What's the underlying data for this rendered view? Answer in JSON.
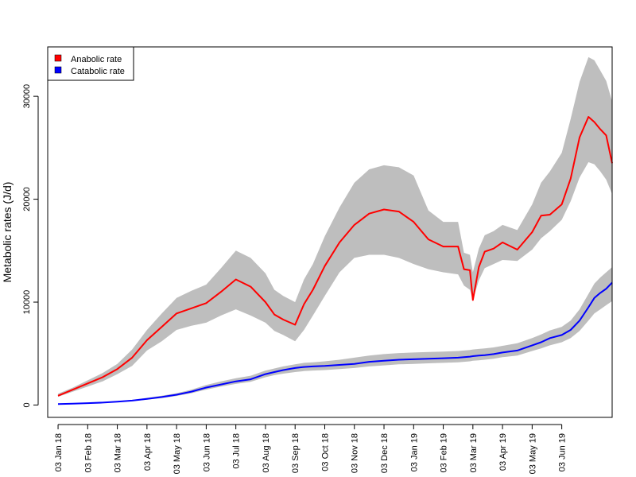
{
  "chart_data": {
    "type": "line",
    "title": "",
    "xlabel": "",
    "ylabel": "Metabolic rates (J/d)",
    "x_tick_labels": [
      "03 Jan 18",
      "03 Feb 18",
      "03 Mar 18",
      "03 Apr 18",
      "03 May 18",
      "03 Jun 18",
      "03 Jul 18",
      "03 Aug 18",
      "03 Sep 18",
      "03 Oct 18",
      "03 Nov 18",
      "03 Dec 18",
      "03 Jan 19",
      "03 Feb 19",
      "03 Mar 19",
      "03 Apr 19",
      "03 May 19",
      "03 Jun 19"
    ],
    "y_ticks": [
      0,
      10000,
      20000,
      30000
    ],
    "y_tick_labels": [
      "0",
      "10000",
      "20000",
      "30000"
    ],
    "ylim": [
      -1200,
      34800
    ],
    "xlim_months": [
      -0.35,
      18.7
    ],
    "legend_position": "top-left",
    "x": [
      0,
      0.5,
      1,
      1.5,
      2,
      2.5,
      3,
      3.5,
      4,
      4.5,
      5,
      5.5,
      6,
      6.5,
      7,
      7.3,
      7.6,
      8,
      8.3,
      8.6,
      9,
      9.5,
      10,
      10.5,
      11,
      11.5,
      12,
      12.5,
      13,
      13.5,
      13.7,
      13.9,
      14,
      14.2,
      14.4,
      14.7,
      15,
      15.5,
      16,
      16.3,
      16.6,
      17,
      17.3,
      17.6,
      17.9,
      18.1,
      18.3,
      18.5,
      18.7
    ],
    "series": [
      {
        "name": "Anabolic rate",
        "color": "#ff0000",
        "values": [
          900,
          1500,
          2100,
          2700,
          3500,
          4600,
          6300,
          7600,
          8900,
          9400,
          9900,
          11000,
          12200,
          11500,
          10000,
          8800,
          8300,
          7800,
          9800,
          11200,
          13500,
          15800,
          17500,
          18600,
          19000,
          18800,
          17800,
          16100,
          15400,
          15400,
          13200,
          13100,
          10200,
          13400,
          14900,
          15200,
          15800,
          15100,
          16800,
          18400,
          18500,
          19500,
          22000,
          26000,
          28000,
          27500,
          26800,
          26200,
          23500
        ],
        "band_low": [
          800,
          1300,
          1800,
          2300,
          3000,
          3800,
          5300,
          6200,
          7300,
          7700,
          8000,
          8700,
          9300,
          8700,
          8000,
          7200,
          6800,
          6200,
          7300,
          8700,
          10600,
          12900,
          14300,
          14600,
          14600,
          14300,
          13700,
          13200,
          12900,
          12700,
          11600,
          11200,
          10200,
          12100,
          13300,
          13700,
          14100,
          14000,
          15100,
          16200,
          16900,
          18000,
          19800,
          22100,
          23600,
          23400,
          22700,
          21900,
          20500
        ],
        "band_high": [
          1100,
          1700,
          2400,
          3100,
          4000,
          5400,
          7300,
          8900,
          10400,
          11100,
          11700,
          13300,
          15000,
          14300,
          12800,
          11200,
          10600,
          10000,
          12200,
          13700,
          16400,
          19200,
          21600,
          22900,
          23300,
          23100,
          22300,
          18900,
          17800,
          17800,
          14800,
          14600,
          12900,
          15200,
          16500,
          16900,
          17500,
          17000,
          19500,
          21600,
          22700,
          24500,
          27800,
          31400,
          33800,
          33500,
          32500,
          31500,
          29500
        ]
      },
      {
        "name": "Catabolic rate",
        "color": "#0000ff",
        "values": [
          100,
          130,
          180,
          240,
          320,
          430,
          600,
          780,
          1000,
          1300,
          1700,
          2000,
          2300,
          2500,
          3000,
          3200,
          3400,
          3600,
          3700,
          3750,
          3800,
          3900,
          4000,
          4200,
          4300,
          4400,
          4450,
          4500,
          4550,
          4600,
          4650,
          4700,
          4750,
          4800,
          4850,
          4950,
          5100,
          5300,
          5800,
          6100,
          6500,
          6800,
          7300,
          8200,
          9500,
          10400,
          10900,
          11300,
          11900
        ],
        "band_low": [
          80,
          110,
          150,
          200,
          280,
          380,
          520,
          680,
          880,
          1150,
          1500,
          1800,
          2050,
          2250,
          2700,
          2900,
          3050,
          3200,
          3300,
          3350,
          3400,
          3500,
          3600,
          3750,
          3850,
          3950,
          4000,
          4050,
          4100,
          4150,
          4200,
          4250,
          4300,
          4350,
          4400,
          4500,
          4650,
          4800,
          5250,
          5500,
          5800,
          6100,
          6500,
          7200,
          8200,
          8900,
          9300,
          9700,
          10100
        ],
        "band_high": [
          130,
          160,
          220,
          290,
          380,
          500,
          700,
          900,
          1150,
          1500,
          1950,
          2300,
          2600,
          2850,
          3350,
          3550,
          3750,
          3950,
          4100,
          4150,
          4250,
          4400,
          4600,
          4800,
          4950,
          5050,
          5100,
          5150,
          5200,
          5250,
          5300,
          5350,
          5400,
          5450,
          5500,
          5600,
          5750,
          6000,
          6500,
          6850,
          7250,
          7600,
          8200,
          9300,
          10800,
          11800,
          12400,
          12900,
          13400
        ]
      }
    ]
  },
  "legend": {
    "items": [
      {
        "label": "Anabolic rate",
        "color": "#ff0000"
      },
      {
        "label": "Catabolic rate",
        "color": "#0000ff"
      }
    ]
  },
  "style": {
    "band_color": "#bebebe",
    "axis_color": "#000000"
  }
}
